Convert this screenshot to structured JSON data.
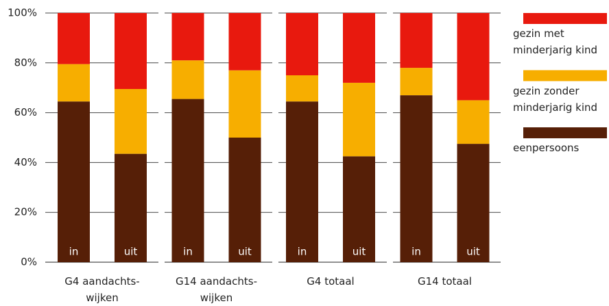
{
  "chart_data": {
    "type": "stacked_bar",
    "categories": [
      "in",
      "uit",
      "in",
      "uit",
      "in",
      "uit",
      "in",
      "uit"
    ],
    "groups": [
      "G4 aandachts­wijken",
      "G14 aandachts­wijken",
      "G4 totaal",
      "G14 totaal"
    ],
    "series": [
      {
        "name": "eenpersoons",
        "color": "#561f07",
        "values": [
          64.5,
          43.5,
          65.5,
          50,
          64.5,
          42.5,
          67,
          47.5
        ]
      },
      {
        "name": "gezin zonder minderjarig kind",
        "color": "#f7ae00",
        "values": [
          15,
          26,
          15.5,
          27,
          10.5,
          29.5,
          11,
          17.5
        ]
      },
      {
        "name": "gezin met minderjarig kind",
        "color": "#e8190e",
        "values": [
          20.5,
          30.5,
          19,
          23,
          25,
          28,
          22,
          35
        ]
      }
    ],
    "ylim": [
      0,
      100
    ],
    "yticks": [
      {
        "value": 0,
        "label": "0%"
      },
      {
        "value": 20,
        "label": "20%"
      },
      {
        "value": 40,
        "label": "40%"
      },
      {
        "value": 60,
        "label": "60%"
      },
      {
        "value": 80,
        "label": "80%"
      },
      {
        "value": 100,
        "label": "100%"
      }
    ],
    "grid": true,
    "legend": "right"
  }
}
